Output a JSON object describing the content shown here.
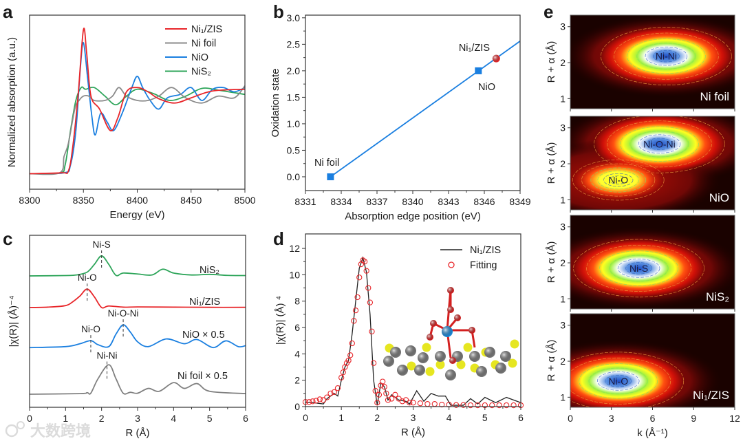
{
  "watermark": "大数跨境",
  "chart_data": [
    {
      "panel": "a",
      "type": "line",
      "xlabel": "Energy (eV)",
      "ylabel": "Normalized absorption  (a.u.)",
      "xlim": [
        8300,
        8500
      ],
      "ylim": [
        -0.18,
        1.84
      ],
      "xticks": [
        8300,
        8350,
        8400,
        8450,
        8500
      ],
      "legend_position": "top-right",
      "series": [
        {
          "name": "Ni₁/ZIS",
          "color": "#e8262a",
          "x": [
            8300,
            8330,
            8336,
            8340,
            8345,
            8350,
            8353,
            8357,
            8365,
            8375,
            8382,
            8390,
            8400,
            8410,
            8420,
            8435,
            8450,
            8470,
            8500
          ],
          "y": [
            0,
            0.01,
            0.03,
            0.3,
            0.9,
            1.67,
            1.4,
            0.9,
            0.75,
            0.5,
            0.65,
            0.95,
            1.0,
            0.95,
            0.87,
            0.82,
            0.88,
            0.96,
            0.98
          ]
        },
        {
          "name": "Ni foil",
          "color": "#8a8a8a",
          "x": [
            8300,
            8328,
            8332,
            8336,
            8342,
            8346,
            8350,
            8355,
            8360,
            8370,
            8377,
            8383,
            8390,
            8400,
            8410,
            8420,
            8432,
            8445,
            8460,
            8475,
            8490,
            8500
          ],
          "y": [
            0,
            0.01,
            0.2,
            0.35,
            0.75,
            0.85,
            0.9,
            0.9,
            0.85,
            0.85,
            0.9,
            1.0,
            0.9,
            0.85,
            0.85,
            0.9,
            1.0,
            0.88,
            0.82,
            0.9,
            0.88,
            1.02
          ]
        },
        {
          "name": "NiO",
          "color": "#1a7fe0",
          "x": [
            8300,
            8332,
            8338,
            8343,
            8347,
            8350,
            8354,
            8358,
            8361,
            8366,
            8372,
            8378,
            8386,
            8395,
            8400,
            8405,
            8412,
            8420,
            8428,
            8440,
            8450,
            8460,
            8470,
            8480,
            8490,
            8500
          ],
          "y": [
            0,
            0.01,
            0.1,
            0.5,
            1.2,
            1.52,
            1.1,
            0.65,
            0.45,
            0.7,
            0.6,
            0.5,
            0.7,
            1.0,
            1.13,
            1.0,
            0.85,
            0.75,
            0.88,
            0.92,
            1.0,
            0.85,
            0.98,
            1.0,
            0.95,
            1.0
          ]
        },
        {
          "name": "NiS₂",
          "color": "#2ea55a",
          "x": [
            8300,
            8328,
            8333,
            8338,
            8343,
            8348,
            8352,
            8360,
            8370,
            8380,
            8390,
            8400,
            8415,
            8430,
            8445,
            8460,
            8475,
            8500
          ],
          "y": [
            0,
            0.01,
            0.1,
            0.5,
            0.85,
            1.0,
            0.98,
            1.0,
            0.9,
            0.8,
            0.9,
            0.98,
            0.93,
            0.85,
            0.9,
            0.99,
            0.97,
            0.92
          ]
        }
      ]
    },
    {
      "panel": "b",
      "type": "scatter",
      "xlabel": "Absorption edge position (eV)",
      "ylabel": "Oxidation state",
      "xlim": [
        8331,
        8349
      ],
      "ylim": [
        -0.26,
        3.05
      ],
      "xticks": [
        8331,
        8334,
        8337,
        8340,
        8343,
        8346,
        8349
      ],
      "yticks": [
        "0.0",
        "0.5",
        "1.0",
        "1.5",
        "2.0",
        "2.5",
        "3.0"
      ],
      "fit_line": {
        "x": [
          8333.1,
          8349
        ],
        "y": [
          0,
          2.56
        ],
        "color": "#1a7fe0"
      },
      "points": [
        {
          "name": "Ni foil",
          "x": 8333.1,
          "y": 0.0,
          "marker": "square",
          "color": "#1a7fe0"
        },
        {
          "name": "NiO",
          "x": 8345.5,
          "y": 2.0,
          "marker": "square",
          "color": "#1a7fe0"
        },
        {
          "name": "Ni₁/ZIS",
          "x": 8347.0,
          "y": 2.23,
          "marker": "circle",
          "color": "#e8262a"
        }
      ]
    },
    {
      "panel": "c",
      "type": "line",
      "xlabel": "R (Å)",
      "ylabel": "|χ(R)| (Å)⁻⁴",
      "xlim": [
        0,
        6
      ],
      "ylim": [
        0,
        8.93
      ],
      "xticks": [
        0,
        1,
        2,
        3,
        4,
        5,
        6
      ],
      "series": [
        {
          "name": "NiS₂",
          "color": "#2ea55a",
          "offset": 6.82,
          "x": [
            0,
            1,
            1.3,
            1.6,
            1.8,
            2.0,
            2.2,
            2.4,
            2.6,
            3.0,
            3.4,
            3.7,
            4.0,
            4.5,
            5,
            5.5,
            6
          ],
          "y": [
            0,
            0.02,
            0.05,
            0.2,
            0.6,
            1.04,
            0.6,
            0.03,
            0.15,
            0.1,
            0.05,
            0.35,
            0.15,
            0.05,
            0.08,
            0.03,
            0.02
          ],
          "peaks": [
            {
              "label": "Ni-S",
              "x": 2.0
            }
          ]
        },
        {
          "name": "Ni₁/ZIS",
          "color": "#e8262a",
          "offset": 5.18,
          "x": [
            0,
            0.5,
            1.0,
            1.2,
            1.4,
            1.6,
            1.8,
            2.0,
            2.2,
            2.6,
            3,
            4,
            5,
            6
          ],
          "y": [
            0,
            0.02,
            0.1,
            0.3,
            0.6,
            0.96,
            0.55,
            0,
            0.08,
            0.02,
            0.03,
            0.02,
            0.01,
            0.01
          ],
          "peaks": [
            {
              "label": "Ni-O",
              "x": 1.6
            }
          ]
        },
        {
          "name": "NiO × 0.5",
          "color": "#1a7fe0",
          "offset": 3.1,
          "x": [
            0,
            1,
            1.4,
            1.7,
            1.9,
            2.2,
            2.4,
            2.6,
            2.8,
            3.0,
            3.3,
            3.8,
            4.3,
            4.65,
            5.1,
            5.45,
            5.8,
            6
          ],
          "y": [
            0,
            0.05,
            0.2,
            0.36,
            0.15,
            0.05,
            0.7,
            1.18,
            0.8,
            0.3,
            0.05,
            0.45,
            0.2,
            0.42,
            0.0,
            0.35,
            0.05,
            0.1
          ],
          "peaks": [
            {
              "label": "Ni-O",
              "x": 1.7
            },
            {
              "label": "Ni-O-Ni",
              "x": 2.6
            }
          ]
        },
        {
          "name": "Ni foil × 0.5",
          "color": "#808080",
          "offset": 0.68,
          "x": [
            0,
            1.4,
            1.6,
            1.7,
            1.9,
            2.2,
            2.4,
            2.6,
            2.8,
            3.0,
            3.3,
            3.6,
            4.0,
            4.3,
            4.65,
            5.0,
            6
          ],
          "y": [
            0,
            0.03,
            0.08,
            0.05,
            0.8,
            1.53,
            0.8,
            0.05,
            0.1,
            0.05,
            0.3,
            0.15,
            0.6,
            0.3,
            0.55,
            0.15,
            0.03
          ],
          "peaks": [
            {
              "label": "Ni-Ni",
              "x": 2.15
            }
          ]
        }
      ]
    },
    {
      "panel": "d",
      "type": "line",
      "xlabel": "R (Å)",
      "ylabel": "|χ(R)| (Å) ⁴",
      "xlim": [
        0,
        6
      ],
      "ylim": [
        0,
        13.1
      ],
      "xticks": [
        0,
        1,
        2,
        3,
        4,
        5,
        6
      ],
      "yticks": [
        0,
        2,
        4,
        6,
        8,
        10,
        12
      ],
      "legend_position": "top-right",
      "series": [
        {
          "name": "Ni₁/ZIS",
          "color": "#222222",
          "style": "line",
          "x": [
            0,
            0.2,
            0.5,
            0.6,
            0.8,
            0.9,
            1.0,
            1.1,
            1.2,
            1.3,
            1.4,
            1.5,
            1.6,
            1.7,
            1.8,
            1.9,
            2.0,
            2.1,
            2.2,
            2.3,
            2.4,
            2.6,
            2.8,
            2.9,
            3.1,
            3.3,
            3.5,
            3.7,
            3.9,
            4.05,
            4.1,
            4.4,
            4.6,
            4.8,
            5.0,
            5.3,
            5.6,
            6
          ],
          "y": [
            0.3,
            0.3,
            0.2,
            0.6,
            1.0,
            0.8,
            2.0,
            3.0,
            3.5,
            5.5,
            8,
            10.5,
            11.3,
            10.2,
            7,
            2,
            0.1,
            1.8,
            1.5,
            0.5,
            0.9,
            0.5,
            0.4,
            0.2,
            1.2,
            0.4,
            1.0,
            0.8,
            0.8,
            0.1,
            0.1,
            0.1,
            0.6,
            0.2,
            0.7,
            0.3,
            0.7,
            0.3
          ]
        },
        {
          "name": "Fitting",
          "color": "#e8262a",
          "style": "open-circle",
          "x": [
            0,
            0.1,
            0.2,
            0.3,
            0.4,
            0.5,
            0.6,
            0.7,
            0.8,
            0.9,
            1.0,
            1.05,
            1.1,
            1.15,
            1.2,
            1.25,
            1.3,
            1.35,
            1.4,
            1.45,
            1.5,
            1.55,
            1.6,
            1.65,
            1.7,
            1.75,
            1.8,
            1.85,
            1.9,
            1.95,
            2.0,
            2.05,
            2.1,
            2.15,
            2.2,
            2.25,
            2.3,
            2.4,
            2.5,
            2.6,
            2.7,
            2.8,
            2.9,
            3.0,
            3.2,
            3.4,
            3.6,
            3.8,
            4.0,
            4.2,
            4.4,
            4.6,
            4.8,
            5.0,
            5.2,
            5.4,
            5.6,
            5.8,
            6.0
          ],
          "y": [
            0.35,
            0.35,
            0.4,
            0.45,
            0.55,
            0.5,
            0.7,
            1.0,
            1.1,
            1.4,
            2.2,
            2.6,
            3.0,
            3.3,
            3.5,
            3.9,
            4.8,
            6.5,
            7.3,
            8.3,
            9.8,
            10.8,
            11.1,
            11.0,
            10.3,
            9.0,
            7.9,
            5.7,
            3.3,
            1.2,
            0.3,
            0.9,
            1.6,
            1.9,
            1.5,
            1.0,
            0.5,
            0.6,
            0.9,
            0.6,
            0.4,
            0.5,
            0.3,
            0.3,
            0.25,
            0.2,
            0.2,
            0.15,
            0.15,
            0.12,
            0.12,
            0.1,
            0.1,
            0.1,
            0.1,
            0.1,
            0.1,
            0.1,
            0.1
          ]
        }
      ]
    },
    {
      "panel": "e",
      "type": "heatmap",
      "xlabel": "k (Å⁻¹)",
      "ylabel": "R + α (Å)",
      "xlim": [
        0,
        12
      ],
      "ylim": [
        0.72,
        3.32
      ],
      "xticks": [
        0,
        3,
        6,
        9,
        12
      ],
      "yticks": [
        1,
        2,
        3
      ],
      "maps": [
        {
          "name": "Ni foil",
          "peaks": [
            {
              "label": "Ni-Ni",
              "k": 7.0,
              "R": 2.18,
              "intensity": 1.0
            }
          ]
        },
        {
          "name": "NiO",
          "peaks": [
            {
              "label": "Ni-O-Ni",
              "k": 6.5,
              "R": 2.55,
              "intensity": 1.0
            },
            {
              "label": "Ni-O",
              "k": 3.5,
              "R": 1.55,
              "intensity": 0.6
            }
          ]
        },
        {
          "name": "NiS₂",
          "peaks": [
            {
              "label": "Ni-S",
              "k": 5.0,
              "R": 1.85,
              "intensity": 1.0
            }
          ]
        },
        {
          "name": "Ni₁/ZIS",
          "peaks": [
            {
              "label": "Ni-O",
              "k": 3.5,
              "R": 1.45,
              "intensity": 1.0
            }
          ]
        }
      ]
    }
  ]
}
